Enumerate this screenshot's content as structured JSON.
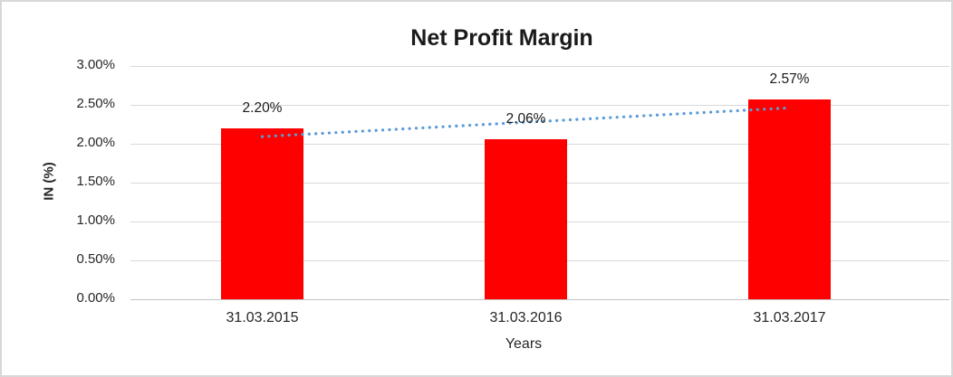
{
  "chart_data": {
    "type": "bar",
    "title": "Net Profit Margin",
    "xlabel": "Years",
    "ylabel": "IN (%)",
    "categories": [
      "31.03.2015",
      "31.03.2016",
      "31.03.2017"
    ],
    "series": [
      {
        "name": "Net Profit Margin",
        "values": [
          2.2,
          2.06,
          2.57
        ],
        "value_labels": [
          "2.20%",
          "2.06%",
          "2.57%"
        ],
        "color": "#FF0000"
      }
    ],
    "trendline": {
      "type": "linear",
      "style": "dotted",
      "color": "#5B9BD5",
      "fitted_endpoints": [
        2.09,
        2.46
      ]
    },
    "ylim": [
      0,
      3
    ],
    "ytick_step": 0.5,
    "ytick_labels": [
      "0.00%",
      "0.50%",
      "1.00%",
      "1.50%",
      "2.00%",
      "2.50%",
      "3.00%"
    ],
    "grid": true,
    "legend": "none"
  },
  "colors": {
    "bar": "#FF0000",
    "trendline": "#5B9BD5",
    "gridline": "#D9D9D9",
    "axis_line": "#C3C3C3",
    "text": "#262626",
    "background": "#FFFFFF",
    "border": "#D8D8D8"
  }
}
